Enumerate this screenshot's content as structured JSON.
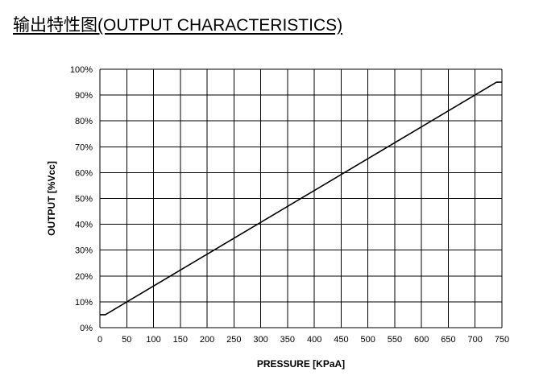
{
  "title": "输出特性图(OUTPUT CHARACTERISTICS)",
  "chart_data": {
    "type": "line",
    "title": "输出特性图(OUTPUT CHARACTERISTICS)",
    "xlabel": "PRESSURE [KPaA]",
    "ylabel": "OUTPUT [%Vcc]",
    "xlim": [
      0,
      750
    ],
    "ylim": [
      0,
      100
    ],
    "x_ticks": [
      0,
      50,
      100,
      150,
      200,
      250,
      300,
      350,
      400,
      450,
      500,
      550,
      600,
      650,
      700,
      750
    ],
    "y_ticks": [
      0,
      10,
      20,
      30,
      40,
      50,
      60,
      70,
      80,
      90,
      100
    ],
    "x_tick_labels": [
      "0",
      "50",
      "100",
      "150",
      "200",
      "250",
      "300",
      "350",
      "400",
      "450",
      "500",
      "550",
      "600",
      "650",
      "700",
      "750"
    ],
    "y_tick_labels": [
      "0%",
      "10%",
      "20%",
      "30%",
      "40%",
      "50%",
      "60%",
      "70%",
      "80%",
      "90%",
      "100%"
    ],
    "grid": true,
    "series": [
      {
        "x": [
          0,
          10,
          740,
          750
        ],
        "y": [
          5,
          5,
          95,
          95
        ],
        "color": "#000000"
      }
    ]
  }
}
